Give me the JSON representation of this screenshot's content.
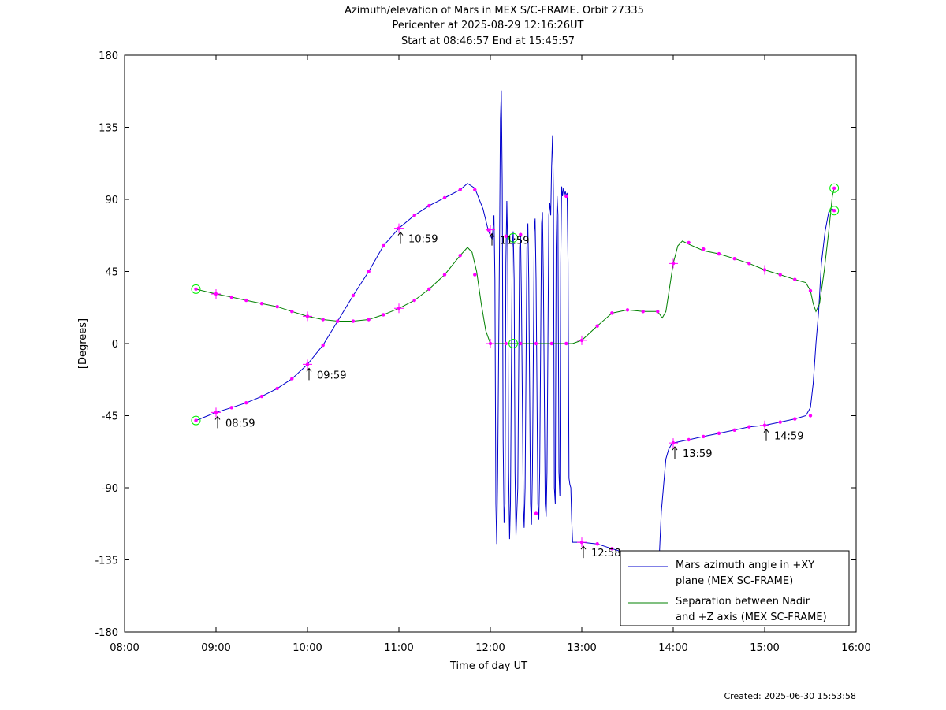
{
  "created": "Created: 2025-06-30 15:53:58",
  "chart_data": {
    "type": "line",
    "title": [
      "Azimuth/elevation of Mars in MEX S/C-FRAME.  Orbit 27335",
      "Pericenter at 2025-08-29 12:16:26UT",
      "Start at 08:46:57 End at 15:45:57"
    ],
    "xlabel": "Time of day UT",
    "ylabel": "[Degrees]",
    "xlim": [
      "08:00",
      "16:00"
    ],
    "ylim": [
      -180,
      180
    ],
    "xticks": [
      {
        "value": 8,
        "label": "08:00"
      },
      {
        "value": 9,
        "label": "09:00"
      },
      {
        "value": 10,
        "label": "10:00"
      },
      {
        "value": 11,
        "label": "11:00"
      },
      {
        "value": 12,
        "label": "12:00"
      },
      {
        "value": 13,
        "label": "13:00"
      },
      {
        "value": 14,
        "label": "14:00"
      },
      {
        "value": 15,
        "label": "15:00"
      },
      {
        "value": 16,
        "label": "16:00"
      }
    ],
    "yticks": [
      180,
      135,
      90,
      45,
      0,
      -45,
      -90,
      -135,
      -180
    ],
    "grid": false,
    "legend_position": "bottom-right",
    "series": [
      {
        "name": "Mars azimuth angle in +XY plane (MEX SC-FRAME)",
        "legend_lines": [
          "Mars azimuth angle in +XY",
          "plane (MEX SC-FRAME)"
        ],
        "color": "#0000cc",
        "points": [
          [
            8.78,
            -48
          ],
          [
            9.0,
            -43
          ],
          [
            9.17,
            -40
          ],
          [
            9.33,
            -37
          ],
          [
            9.5,
            -33
          ],
          [
            9.67,
            -28
          ],
          [
            9.83,
            -22
          ],
          [
            10.0,
            -13
          ],
          [
            10.17,
            -1
          ],
          [
            10.33,
            14
          ],
          [
            10.5,
            30
          ],
          [
            10.67,
            45
          ],
          [
            10.83,
            61
          ],
          [
            11.0,
            72
          ],
          [
            11.17,
            80
          ],
          [
            11.33,
            86
          ],
          [
            11.5,
            91
          ],
          [
            11.67,
            96
          ],
          [
            11.75,
            100
          ],
          [
            11.83,
            97
          ],
          [
            11.92,
            84
          ],
          [
            11.98,
            70
          ],
          [
            12.02,
            65
          ],
          [
            12.04,
            80
          ],
          [
            12.05,
            40
          ],
          [
            12.06,
            -100
          ],
          [
            12.07,
            -125
          ],
          [
            12.08,
            -80
          ],
          [
            12.1,
            60
          ],
          [
            12.11,
            140
          ],
          [
            12.12,
            158
          ],
          [
            12.13,
            100
          ],
          [
            12.14,
            -60
          ],
          [
            12.15,
            -112
          ],
          [
            12.16,
            -100
          ],
          [
            12.17,
            50
          ],
          [
            12.18,
            89
          ],
          [
            12.19,
            60
          ],
          [
            12.2,
            -80
          ],
          [
            12.21,
            -122
          ],
          [
            12.22,
            -100
          ],
          [
            12.24,
            60
          ],
          [
            12.25,
            70
          ],
          [
            12.26,
            40
          ],
          [
            12.27,
            -80
          ],
          [
            12.28,
            -120
          ],
          [
            12.3,
            -90
          ],
          [
            12.32,
            60
          ],
          [
            12.33,
            68
          ],
          [
            12.34,
            30
          ],
          [
            12.36,
            -100
          ],
          [
            12.37,
            -115
          ],
          [
            12.38,
            -90
          ],
          [
            12.4,
            60
          ],
          [
            12.41,
            75
          ],
          [
            12.42,
            40
          ],
          [
            12.44,
            -100
          ],
          [
            12.45,
            -113
          ],
          [
            12.46,
            -80
          ],
          [
            12.48,
            70
          ],
          [
            12.49,
            78
          ],
          [
            12.5,
            40
          ],
          [
            12.52,
            -100
          ],
          [
            12.53,
            -110
          ],
          [
            12.54,
            -80
          ],
          [
            12.56,
            75
          ],
          [
            12.57,
            82
          ],
          [
            12.58,
            40
          ],
          [
            12.6,
            -100
          ],
          [
            12.61,
            -108
          ],
          [
            12.62,
            -80
          ],
          [
            12.64,
            80
          ],
          [
            12.65,
            88
          ],
          [
            12.66,
            80
          ],
          [
            12.67,
            110
          ],
          [
            12.68,
            130
          ],
          [
            12.69,
            95
          ],
          [
            12.7,
            -90
          ],
          [
            12.71,
            -100
          ],
          [
            12.72,
            60
          ],
          [
            12.73,
            92
          ],
          [
            12.74,
            80
          ],
          [
            12.75,
            -80
          ],
          [
            12.76,
            -95
          ],
          [
            12.77,
            50
          ],
          [
            12.78,
            98
          ],
          [
            12.79,
            92
          ],
          [
            12.8,
            97
          ],
          [
            12.81,
            93
          ],
          [
            12.82,
            95
          ],
          [
            12.83,
            92
          ],
          [
            12.84,
            94
          ],
          [
            12.85,
            50
          ],
          [
            12.86,
            -84
          ],
          [
            12.87,
            -88
          ],
          [
            12.88,
            -90
          ],
          [
            12.89,
            -110
          ],
          [
            12.9,
            -124
          ],
          [
            13.0,
            -124
          ],
          [
            13.17,
            -125
          ],
          [
            13.33,
            -128
          ],
          [
            13.5,
            -131
          ],
          [
            13.67,
            -133
          ],
          [
            13.83,
            -134
          ],
          [
            13.85,
            -130
          ],
          [
            13.87,
            -105
          ],
          [
            13.9,
            -85
          ],
          [
            13.92,
            -72
          ],
          [
            13.95,
            -66
          ],
          [
            13.98,
            -63
          ],
          [
            14.0,
            -62
          ],
          [
            14.17,
            -60
          ],
          [
            14.33,
            -58
          ],
          [
            14.5,
            -56
          ],
          [
            14.67,
            -54
          ],
          [
            14.83,
            -52
          ],
          [
            15.0,
            -51
          ],
          [
            15.17,
            -49
          ],
          [
            15.33,
            -47
          ],
          [
            15.45,
            -45
          ],
          [
            15.5,
            -40
          ],
          [
            15.53,
            -25
          ],
          [
            15.56,
            0
          ],
          [
            15.59,
            20
          ],
          [
            15.62,
            50
          ],
          [
            15.66,
            70
          ],
          [
            15.7,
            82
          ],
          [
            15.74,
            84
          ],
          [
            15.76,
            83
          ]
        ]
      },
      {
        "name": "Separation between Nadir and +Z axis (MEX SC-FRAME)",
        "legend_lines": [
          "Separation between Nadir",
          "and +Z axis (MEX SC-FRAME)"
        ],
        "color": "#008000",
        "points": [
          [
            8.78,
            34
          ],
          [
            9.0,
            31
          ],
          [
            9.17,
            29
          ],
          [
            9.33,
            27
          ],
          [
            9.5,
            25
          ],
          [
            9.67,
            23
          ],
          [
            9.83,
            20
          ],
          [
            10.0,
            17
          ],
          [
            10.17,
            15
          ],
          [
            10.33,
            14
          ],
          [
            10.5,
            14
          ],
          [
            10.67,
            15
          ],
          [
            10.83,
            18
          ],
          [
            11.0,
            22
          ],
          [
            11.17,
            27
          ],
          [
            11.33,
            34
          ],
          [
            11.5,
            43
          ],
          [
            11.67,
            55
          ],
          [
            11.75,
            60
          ],
          [
            11.8,
            57
          ],
          [
            11.85,
            45
          ],
          [
            11.9,
            25
          ],
          [
            11.95,
            8
          ],
          [
            12.0,
            0
          ],
          [
            12.5,
            0
          ],
          [
            12.9,
            0
          ],
          [
            13.0,
            2
          ],
          [
            13.17,
            11
          ],
          [
            13.33,
            19
          ],
          [
            13.5,
            21
          ],
          [
            13.67,
            20
          ],
          [
            13.83,
            20
          ],
          [
            13.88,
            16
          ],
          [
            13.92,
            20
          ],
          [
            13.96,
            35
          ],
          [
            14.0,
            50
          ],
          [
            14.05,
            61
          ],
          [
            14.1,
            64
          ],
          [
            14.17,
            62
          ],
          [
            14.33,
            58
          ],
          [
            14.5,
            56
          ],
          [
            14.67,
            53
          ],
          [
            14.83,
            50
          ],
          [
            15.0,
            46
          ],
          [
            15.17,
            43
          ],
          [
            15.33,
            40
          ],
          [
            15.45,
            38
          ],
          [
            15.5,
            33
          ],
          [
            15.53,
            25
          ],
          [
            15.56,
            20
          ],
          [
            15.6,
            25
          ],
          [
            15.65,
            45
          ],
          [
            15.7,
            70
          ],
          [
            15.74,
            92
          ],
          [
            15.76,
            97
          ]
        ]
      }
    ],
    "markers": [
      [
        8.78,
        -48
      ],
      [
        9.0,
        -43
      ],
      [
        9.17,
        -40
      ],
      [
        9.33,
        -37
      ],
      [
        9.5,
        -33
      ],
      [
        9.67,
        -28
      ],
      [
        9.83,
        -22
      ],
      [
        10.0,
        -13
      ],
      [
        10.17,
        -1
      ],
      [
        10.33,
        14
      ],
      [
        10.5,
        30
      ],
      [
        10.67,
        45
      ],
      [
        10.83,
        61
      ],
      [
        11.0,
        72
      ],
      [
        11.17,
        80
      ],
      [
        11.33,
        86
      ],
      [
        11.5,
        91
      ],
      [
        11.67,
        96
      ],
      [
        11.83,
        96
      ],
      [
        11.98,
        71
      ],
      [
        12.17,
        67
      ],
      [
        12.33,
        68
      ],
      [
        12.5,
        -106
      ],
      [
        12.83,
        92
      ],
      [
        13.0,
        -124
      ],
      [
        13.17,
        -125
      ],
      [
        13.33,
        -128
      ],
      [
        14.0,
        -62
      ],
      [
        14.17,
        -60
      ],
      [
        14.33,
        -58
      ],
      [
        14.5,
        -56
      ],
      [
        14.67,
        -54
      ],
      [
        14.83,
        -52
      ],
      [
        15.0,
        -51
      ],
      [
        15.17,
        -49
      ],
      [
        15.33,
        -47
      ],
      [
        15.5,
        -45
      ],
      [
        15.76,
        83
      ],
      [
        8.78,
        34
      ],
      [
        9.0,
        31
      ],
      [
        9.17,
        29
      ],
      [
        9.33,
        27
      ],
      [
        9.5,
        25
      ],
      [
        9.67,
        23
      ],
      [
        9.83,
        20
      ],
      [
        10.0,
        17
      ],
      [
        10.17,
        15
      ],
      [
        10.33,
        14
      ],
      [
        10.5,
        14
      ],
      [
        10.67,
        15
      ],
      [
        10.83,
        18
      ],
      [
        11.0,
        22
      ],
      [
        11.17,
        27
      ],
      [
        11.33,
        34
      ],
      [
        11.5,
        43
      ],
      [
        11.67,
        55
      ],
      [
        11.83,
        43
      ],
      [
        12.0,
        0
      ],
      [
        12.17,
        0
      ],
      [
        12.33,
        0
      ],
      [
        12.5,
        0
      ],
      [
        12.67,
        0
      ],
      [
        12.83,
        0
      ],
      [
        13.0,
        2
      ],
      [
        13.17,
        11
      ],
      [
        13.33,
        19
      ],
      [
        13.5,
        21
      ],
      [
        13.67,
        20
      ],
      [
        13.83,
        20
      ],
      [
        14.0,
        50
      ],
      [
        14.17,
        63
      ],
      [
        14.33,
        59
      ],
      [
        14.5,
        56
      ],
      [
        14.67,
        53
      ],
      [
        14.83,
        50
      ],
      [
        15.0,
        46
      ],
      [
        15.17,
        43
      ],
      [
        15.33,
        40
      ],
      [
        15.5,
        33
      ],
      [
        15.76,
        97
      ]
    ],
    "hour_markers": [
      [
        9.0,
        -43
      ],
      [
        10.0,
        -13
      ],
      [
        11.0,
        72
      ],
      [
        12.0,
        71
      ],
      [
        13.0,
        -124
      ],
      [
        14.0,
        -62
      ],
      [
        15.0,
        -51
      ],
      [
        9.0,
        31
      ],
      [
        10.0,
        17
      ],
      [
        11.0,
        22
      ],
      [
        12.0,
        0
      ],
      [
        13.0,
        2
      ],
      [
        14.0,
        50
      ],
      [
        15.0,
        46
      ]
    ],
    "endpoint_circles": [
      [
        8.78,
        -48
      ],
      [
        8.78,
        34
      ],
      [
        15.76,
        83
      ],
      [
        15.76,
        97
      ],
      [
        12.25,
        0
      ],
      [
        12.25,
        66
      ]
    ],
    "annotations": [
      {
        "text": "08:59",
        "x": 9.0,
        "y": -43
      },
      {
        "text": "09:59",
        "x": 10.0,
        "y": -13
      },
      {
        "text": "10:59",
        "x": 11.0,
        "y": 72
      },
      {
        "text": "11:59",
        "x": 12.0,
        "y": 71
      },
      {
        "text": "12:58",
        "x": 13.0,
        "y": -124
      },
      {
        "text": "13:59",
        "x": 14.0,
        "y": -62
      },
      {
        "text": "14:59",
        "x": 15.0,
        "y": -51
      }
    ]
  }
}
